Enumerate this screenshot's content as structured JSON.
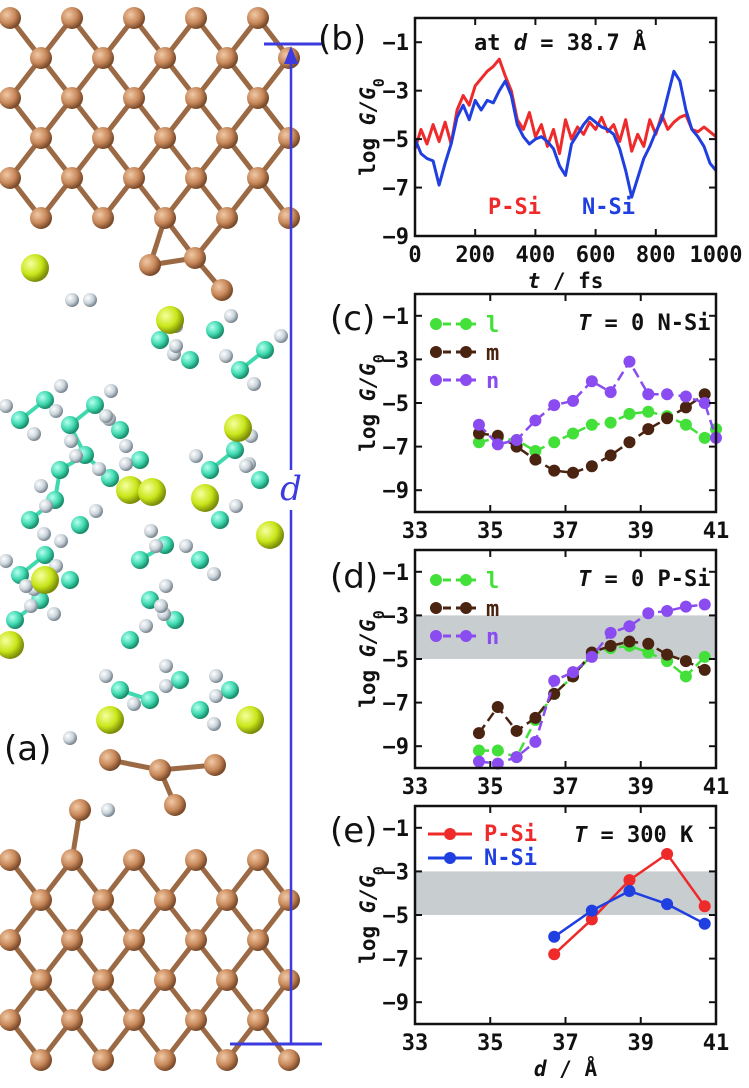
{
  "panel_a": {
    "tag": "(a)",
    "distance_label": "d"
  },
  "chart_data": [
    {
      "id": "b",
      "tag": "(b)",
      "type": "line",
      "annotation": "at d = 38.7 Å",
      "xlabel": "t / fs",
      "ylabel": "log G/G0",
      "xlim": [
        0,
        1000
      ],
      "ylim": [
        -9,
        0
      ],
      "xticks": [
        0,
        200,
        400,
        600,
        800,
        1000
      ],
      "yticks": [
        -1,
        -3,
        -5,
        -7,
        -9
      ],
      "legend": [
        {
          "name": "P-Si",
          "color": "#ee2a2a"
        },
        {
          "name": "N-Si",
          "color": "#1f3fe0"
        }
      ],
      "series": [
        {
          "name": "P-Si",
          "color": "#ee2a2a",
          "x": [
            0,
            20,
            40,
            60,
            80,
            100,
            120,
            140,
            160,
            180,
            200,
            220,
            240,
            260,
            280,
            300,
            320,
            340,
            360,
            380,
            400,
            420,
            440,
            460,
            480,
            500,
            520,
            540,
            560,
            580,
            600,
            620,
            640,
            660,
            680,
            700,
            720,
            740,
            760,
            780,
            800,
            820,
            840,
            860,
            880,
            900,
            920,
            940,
            960,
            980,
            1000
          ],
          "values": [
            -5.4,
            -4.6,
            -5.2,
            -4.4,
            -5.1,
            -4.3,
            -5.2,
            -3.8,
            -3.2,
            -3.6,
            -2.8,
            -2.5,
            -2.2,
            -2.0,
            -1.7,
            -2.4,
            -3.0,
            -4.2,
            -4.6,
            -3.9,
            -4.9,
            -4.4,
            -5.3,
            -4.6,
            -5.6,
            -4.2,
            -5.0,
            -4.5,
            -4.8,
            -4.3,
            -4.6,
            -4.1,
            -4.7,
            -4.4,
            -5.1,
            -4.2,
            -5.5,
            -4.8,
            -5.3,
            -4.2,
            -4.8,
            -4.0,
            -4.6,
            -4.3,
            -4.1,
            -4.0,
            -4.6,
            -4.7,
            -4.5,
            -4.7,
            -4.9
          ]
        },
        {
          "name": "N-Si",
          "color": "#1f3fe0",
          "x": [
            0,
            20,
            40,
            60,
            80,
            100,
            120,
            140,
            160,
            180,
            200,
            220,
            240,
            260,
            280,
            300,
            320,
            340,
            360,
            380,
            400,
            420,
            440,
            460,
            480,
            500,
            520,
            540,
            560,
            580,
            600,
            620,
            640,
            660,
            680,
            700,
            720,
            740,
            760,
            780,
            800,
            820,
            840,
            860,
            880,
            900,
            920,
            940,
            960,
            980,
            1000
          ],
          "values": [
            -5.0,
            -5.6,
            -5.8,
            -5.9,
            -6.9,
            -6.0,
            -5.2,
            -4.1,
            -3.6,
            -4.2,
            -3.4,
            -3.8,
            -3.4,
            -3.5,
            -3.0,
            -2.6,
            -3.2,
            -4.4,
            -4.9,
            -5.2,
            -5.0,
            -4.9,
            -5.1,
            -5.4,
            -6.1,
            -6.5,
            -5.2,
            -4.8,
            -4.4,
            -4.1,
            -4.3,
            -4.5,
            -4.6,
            -4.8,
            -5.4,
            -6.3,
            -7.4,
            -6.6,
            -5.8,
            -5.3,
            -4.7,
            -4.2,
            -3.2,
            -2.2,
            -2.6,
            -3.8,
            -4.6,
            -4.9,
            -5.3,
            -6.0,
            -6.3
          ]
        }
      ]
    },
    {
      "id": "c",
      "tag": "(c)",
      "type": "line",
      "annotation": "T = 0 N-Si",
      "ylabel": "log G/G0",
      "xlim": [
        33,
        41
      ],
      "ylim": [
        -10,
        0
      ],
      "xticks": [
        33,
        35,
        37,
        39,
        41
      ],
      "yticks": [
        -1,
        -3,
        -5,
        -7,
        -9
      ],
      "dashed": true,
      "legend": [
        {
          "name": "l",
          "color": "#44e03a"
        },
        {
          "name": "m",
          "color": "#4a2410"
        },
        {
          "name": "n",
          "color": "#8a4cf0"
        }
      ],
      "series": [
        {
          "name": "l",
          "color": "#44e03a",
          "x": [
            34.7,
            35.2,
            35.7,
            36.2,
            36.7,
            37.2,
            37.7,
            38.2,
            38.7,
            39.2,
            39.7,
            40.2,
            40.7,
            41.0
          ],
          "values": [
            -6.8,
            -6.6,
            -6.7,
            -7.2,
            -6.8,
            -6.4,
            -6.0,
            -5.9,
            -5.5,
            -5.4,
            -5.6,
            -6.0,
            -6.6,
            -6.2
          ]
        },
        {
          "name": "m",
          "color": "#4a2410",
          "x": [
            34.7,
            35.2,
            35.7,
            36.2,
            36.7,
            37.2,
            37.7,
            38.2,
            38.7,
            39.2,
            39.7,
            40.2,
            40.7
          ],
          "values": [
            -6.4,
            -6.5,
            -7.0,
            -7.6,
            -8.1,
            -8.2,
            -7.9,
            -7.4,
            -6.8,
            -6.2,
            -5.7,
            -5.2,
            -4.6
          ]
        },
        {
          "name": "n",
          "color": "#8a4cf0",
          "x": [
            34.7,
            35.2,
            35.7,
            36.2,
            36.7,
            37.2,
            37.7,
            38.2,
            38.7,
            39.2,
            39.7,
            40.2,
            40.7,
            41.0
          ],
          "values": [
            -6.0,
            -6.9,
            -6.7,
            -5.8,
            -5.1,
            -4.9,
            -4.0,
            -4.5,
            -3.1,
            -4.6,
            -4.6,
            -4.7,
            -5.0,
            -6.6
          ]
        }
      ]
    },
    {
      "id": "d",
      "tag": "(d)",
      "type": "line",
      "annotation": "T = 0 P-Si",
      "ylabel": "log G/G0",
      "xlim": [
        33,
        41
      ],
      "ylim": [
        -10,
        0
      ],
      "xticks": [
        33,
        35,
        37,
        39,
        41
      ],
      "yticks": [
        -1,
        -3,
        -5,
        -7,
        -9
      ],
      "dashed": true,
      "band": [
        -5,
        -3
      ],
      "legend": [
        {
          "name": "l",
          "color": "#44e03a"
        },
        {
          "name": "m",
          "color": "#4a2410"
        },
        {
          "name": "n",
          "color": "#8a4cf0"
        }
      ],
      "series": [
        {
          "name": "l",
          "color": "#44e03a",
          "x": [
            34.7,
            35.2,
            35.7,
            36.2,
            36.7,
            37.2,
            37.7,
            38.2,
            38.7,
            39.2,
            39.7,
            40.2,
            40.7
          ],
          "values": [
            -9.2,
            -9.2,
            -9.5,
            -7.8,
            -6.6,
            -5.8,
            -4.8,
            -4.5,
            -4.4,
            -4.7,
            -5.1,
            -5.8,
            -4.9
          ]
        },
        {
          "name": "m",
          "color": "#4a2410",
          "x": [
            34.7,
            35.2,
            35.7,
            36.2,
            36.7,
            37.2,
            37.7,
            38.2,
            38.7,
            39.2,
            39.7,
            40.2,
            40.7
          ],
          "values": [
            -8.4,
            -7.2,
            -8.3,
            -7.7,
            -6.6,
            -5.8,
            -4.7,
            -4.4,
            -4.2,
            -4.3,
            -4.8,
            -5.1,
            -5.5
          ]
        },
        {
          "name": "n",
          "color": "#8a4cf0",
          "x": [
            34.7,
            35.2,
            35.7,
            36.2,
            36.7,
            37.2,
            37.7,
            38.2,
            38.7,
            39.2,
            39.7,
            40.2,
            40.7
          ],
          "values": [
            -9.7,
            -9.8,
            -9.5,
            -8.8,
            -6.0,
            -5.6,
            -4.9,
            -3.8,
            -3.5,
            -2.9,
            -2.8,
            -2.6,
            -2.5
          ]
        }
      ]
    },
    {
      "id": "e",
      "tag": "(e)",
      "type": "line",
      "annotation": "T = 300 K",
      "xlabel": "d / Å",
      "ylabel": "log G/G0",
      "xlim": [
        33,
        41
      ],
      "ylim": [
        -10,
        0
      ],
      "xticks": [
        33,
        35,
        37,
        39,
        41
      ],
      "yticks": [
        -1,
        -3,
        -5,
        -7,
        -9
      ],
      "band": [
        -5,
        -3
      ],
      "legend": [
        {
          "name": "P-Si",
          "color": "#ee2a2a"
        },
        {
          "name": "N-Si",
          "color": "#1f3fe0"
        }
      ],
      "series": [
        {
          "name": "P-Si",
          "color": "#ee2a2a",
          "x": [
            36.7,
            37.7,
            38.7,
            39.7,
            40.7
          ],
          "values": [
            -6.8,
            -5.2,
            -3.4,
            -2.2,
            -4.6
          ]
        },
        {
          "name": "N-Si",
          "color": "#1f3fe0",
          "x": [
            36.7,
            37.7,
            38.7,
            39.7,
            40.7
          ],
          "values": [
            -6.0,
            -4.8,
            -3.9,
            -4.5,
            -5.4
          ]
        }
      ]
    }
  ],
  "colors": {
    "carbon": "#c8885a",
    "carbon_bond": "#9b6a44",
    "chain_c": "#3fd9b0",
    "hydrogen": "#c9d3da",
    "sulfur": "#c8e619",
    "dimension": "#3b3bdf",
    "band": "#c8cdd0"
  }
}
